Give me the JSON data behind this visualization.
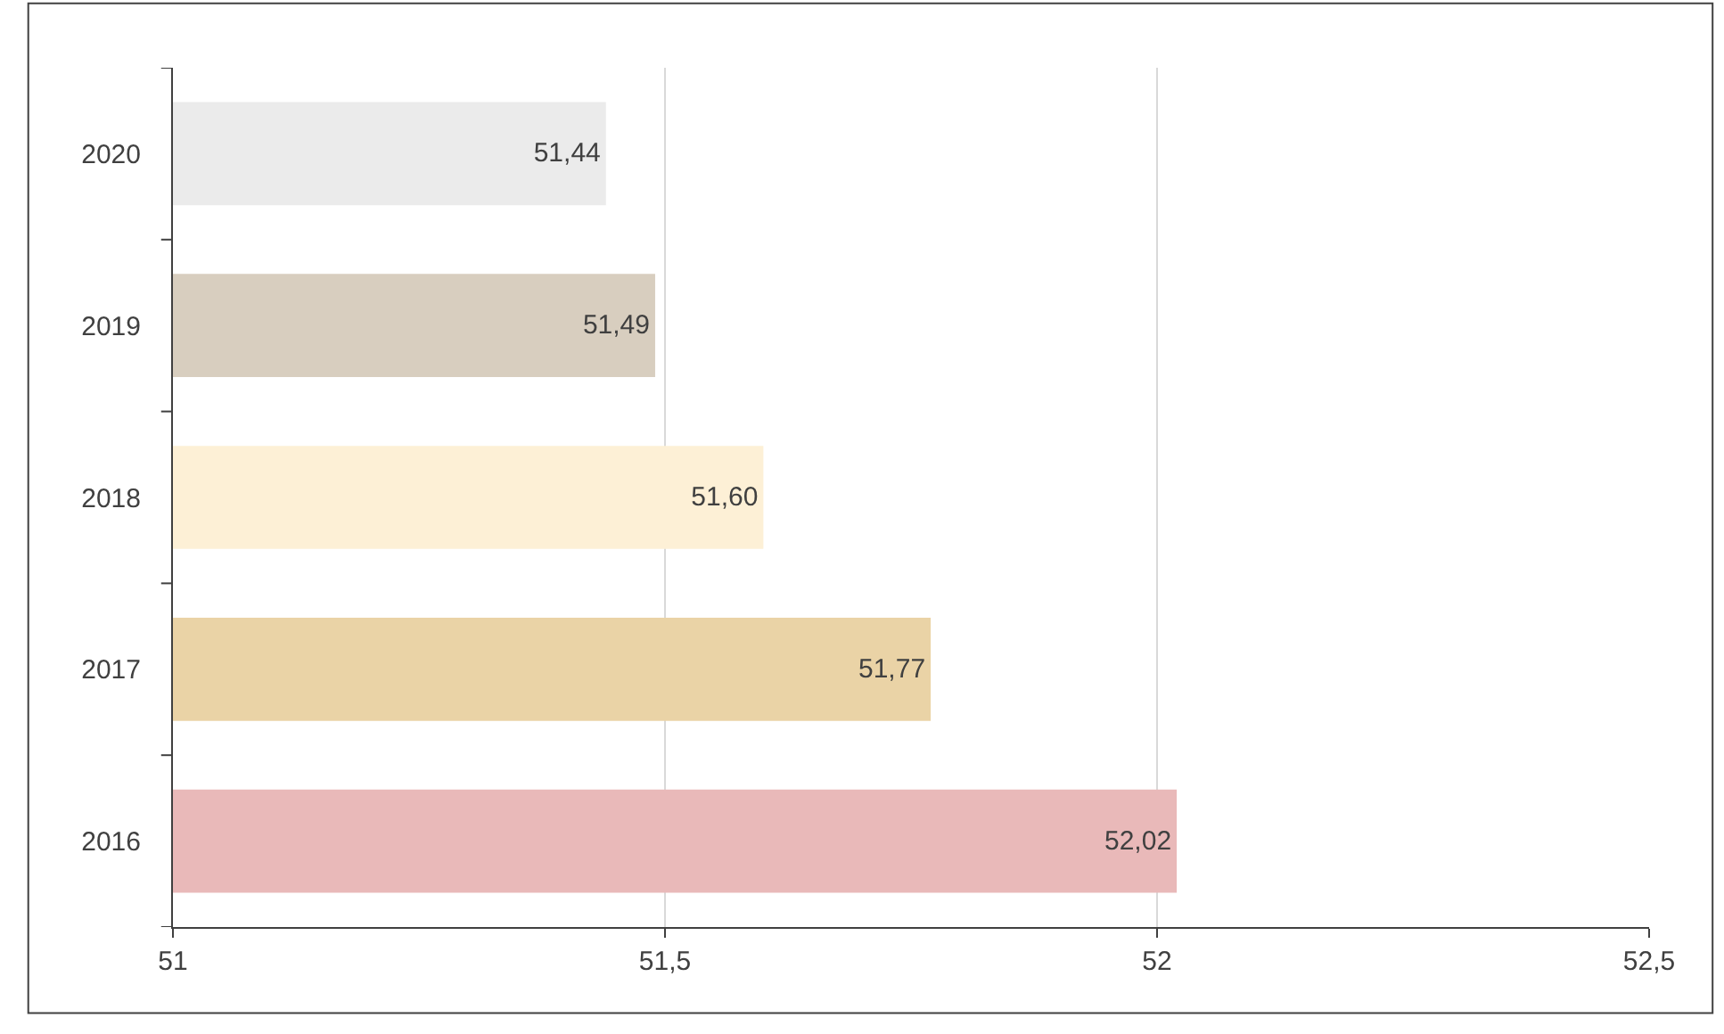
{
  "chart_data": {
    "type": "bar",
    "orientation": "horizontal",
    "categories": [
      "2020",
      "2019",
      "2018",
      "2017",
      "2016"
    ],
    "values": [
      51.44,
      51.49,
      51.6,
      51.77,
      52.02
    ],
    "value_labels": [
      "51,44",
      "51,49",
      "51,60",
      "51,77",
      "52,02"
    ],
    "colors": [
      "#ebebeb",
      "#d8cebf",
      "#fdf0d6",
      "#ead3a6",
      "#e9b9b9"
    ],
    "xlim": [
      51,
      52.5
    ],
    "xticks": [
      {
        "value": 51,
        "label": "51"
      },
      {
        "value": 51.5,
        "label": "51,5"
      },
      {
        "value": 52,
        "label": "52"
      },
      {
        "value": 52.5,
        "label": "52,5"
      }
    ],
    "grid": "x"
  }
}
